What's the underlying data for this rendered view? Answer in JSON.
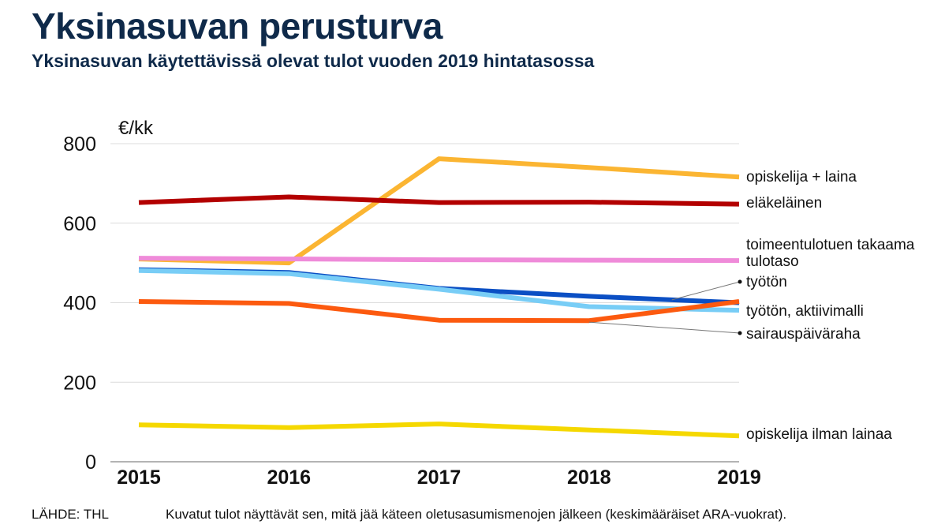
{
  "header": {
    "title": "Yksinasuvan perusturva",
    "subtitle": "Yksinasuvan käytettävissä olevat tulot vuoden 2019 hintatasossa"
  },
  "footer": {
    "source": "LÄHDE: THL",
    "note": "Kuvatut tulot näyttävät sen, mitä jää käteen oletusasumismenojen jälkeen (keskimääräiset ARA-vuokrat)."
  },
  "chart_data": {
    "type": "line",
    "title": "Yksinasuvan perusturva",
    "xlabel": "",
    "ylabel": "€/kk",
    "x": [
      "2015",
      "2016",
      "2017",
      "2018",
      "2019"
    ],
    "ylim": [
      0,
      800
    ],
    "yticks": [
      0,
      200,
      400,
      600,
      800
    ],
    "grid": true,
    "series": [
      {
        "name": "opiskelija + laina",
        "color": "#fbb532",
        "values": [
          510,
          500,
          762,
          740,
          716
        ]
      },
      {
        "name": "eläkeläinen",
        "color": "#b30000",
        "values": [
          652,
          666,
          652,
          653,
          648
        ]
      },
      {
        "name": "toimeentulotuen takaama tulotaso",
        "label_lines": [
          "toimeentulotuen takaama",
          "tulotaso"
        ],
        "color": "#ef8bd9",
        "values": [
          512,
          510,
          508,
          507,
          506
        ]
      },
      {
        "name": "työtön",
        "color": "#0b4fc4",
        "values": [
          483,
          476,
          436,
          416,
          400
        ]
      },
      {
        "name": "työtön, aktiivimalli",
        "color": "#78cdf6",
        "values": [
          481,
          473,
          434,
          390,
          381
        ]
      },
      {
        "name": "sairauspäiväraha",
        "color": "#fc5a0f",
        "values": [
          403,
          398,
          356,
          355,
          403
        ]
      },
      {
        "name": "opiskelija ilman lainaa",
        "color": "#f5d800",
        "values": [
          93,
          86,
          95,
          80,
          65
        ]
      }
    ]
  }
}
